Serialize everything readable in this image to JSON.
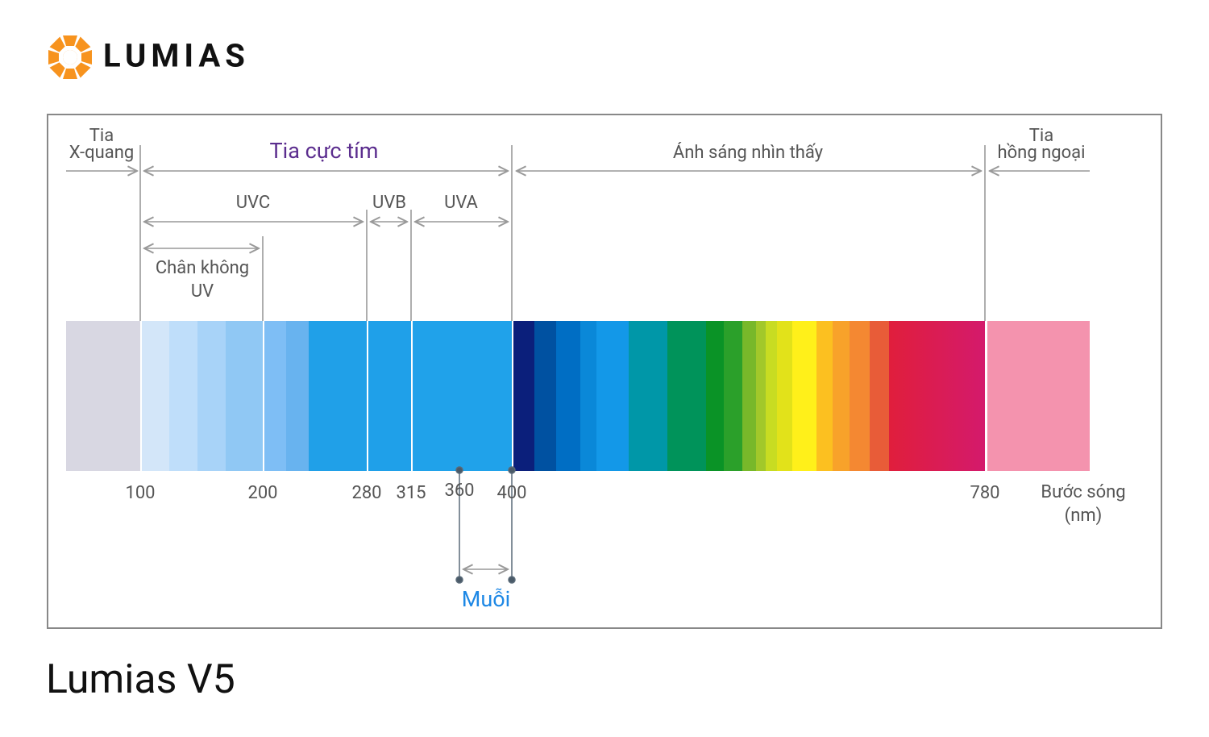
{
  "logo": {
    "text": "LUMIAS"
  },
  "diagram": {
    "xray": [
      "Tia",
      "X-quang"
    ],
    "uv_title": "Tia cực tím",
    "visible": "Ánh sáng nhìn thấy",
    "infrared": [
      "Tia",
      "hồng ngoại"
    ],
    "bands": [
      "UVC",
      "UVB",
      "UVA"
    ],
    "vacuum_uv": [
      "Chân không",
      "UV"
    ],
    "ticks": [
      100,
      200,
      280,
      315,
      360,
      400,
      780
    ],
    "axis_label": [
      "Bước sóng",
      "(nm)"
    ],
    "mosquito": "Muỗi"
  },
  "caption": "Lumias V5"
}
